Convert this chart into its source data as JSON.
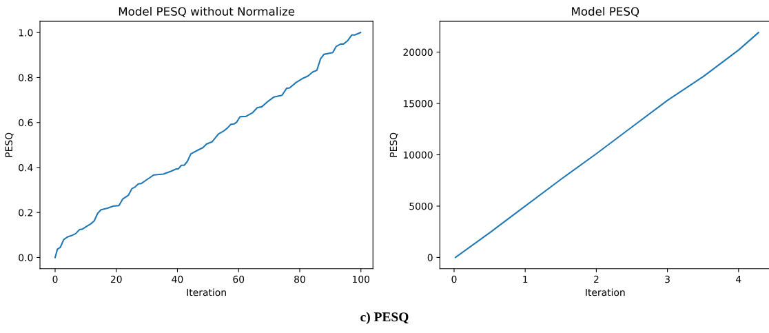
{
  "chart_data": [
    {
      "type": "line",
      "title": "Model PESQ without Normalize",
      "xlabel": "Iteration",
      "ylabel": "PESQ",
      "xlim": [
        -4.95,
        103.95
      ],
      "ylim": [
        -0.05,
        1.05
      ],
      "xticks": [
        0,
        20,
        40,
        60,
        80,
        100
      ],
      "yticks": [
        {
          "value": 0,
          "label": "0.0"
        },
        0.2,
        0.4,
        0.6,
        0.8,
        {
          "value": 1,
          "label": "1.0"
        }
      ],
      "grid": false,
      "legend": false,
      "annotations": [
        "c) PESQ"
      ],
      "series": [
        {
          "color": "#1f77b4",
          "x": [
            0,
            0.75,
            1.7,
            2.8,
            4,
            5.3,
            6.7,
            8,
            8.9,
            10.1,
            11.6,
            12.8,
            13.9,
            15,
            17.1,
            19,
            20.9,
            22.1,
            24,
            25.1,
            26,
            27.2,
            28.2,
            30.1,
            32.3,
            35.4,
            38,
            39.6,
            40.3,
            41.3,
            42.2,
            43.2,
            44.4,
            46.8,
            48.3,
            49.5,
            51.4,
            53.4,
            55.2,
            56.3,
            57.5,
            58.6,
            59.4,
            60.5,
            62.4,
            64.5,
            66.1,
            67.6,
            69.6,
            71.5,
            74.2,
            75.7,
            76.7,
            78.8,
            81.1,
            82.7,
            84.3,
            85.6,
            86.8,
            87.9,
            89.4,
            90.8,
            91.9,
            93.4,
            94.3,
            95.7,
            97,
            98,
            99.9
          ],
          "values": [
            0,
            0.037,
            0.045,
            0.079,
            0.091,
            0.097,
            0.106,
            0.124,
            0.126,
            0.137,
            0.149,
            0.163,
            0.196,
            0.212,
            0.219,
            0.228,
            0.231,
            0.26,
            0.277,
            0.306,
            0.312,
            0.327,
            0.329,
            0.347,
            0.367,
            0.371,
            0.384,
            0.394,
            0.394,
            0.41,
            0.41,
            0.426,
            0.461,
            0.478,
            0.488,
            0.504,
            0.515,
            0.549,
            0.563,
            0.575,
            0.592,
            0.594,
            0.602,
            0.626,
            0.627,
            0.643,
            0.666,
            0.67,
            0.694,
            0.713,
            0.721,
            0.752,
            0.754,
            0.778,
            0.797,
            0.807,
            0.825,
            0.832,
            0.883,
            0.903,
            0.907,
            0.911,
            0.938,
            0.949,
            0.949,
            0.964,
            0.989,
            0.989,
            1.0
          ]
        }
      ]
    },
    {
      "type": "line",
      "title": "Model PESQ",
      "xlabel": "Iteration",
      "ylabel": "PESQ",
      "xlim": [
        -0.2,
        4.45
      ],
      "ylim": [
        -1100,
        23000
      ],
      "xticks": [
        0,
        1,
        2,
        3,
        4
      ],
      "yticks": [
        0,
        5000,
        10000,
        15000,
        20000
      ],
      "grid": false,
      "legend": false,
      "series": [
        {
          "color": "#1f77b4",
          "x": [
            0.02,
            0.5,
            1,
            1.5,
            2,
            2.5,
            3,
            3.5,
            4,
            4.28
          ],
          "values": [
            0,
            2400,
            5000,
            7600,
            10100,
            12700,
            15300,
            17600,
            20200,
            21900
          ]
        }
      ]
    }
  ]
}
